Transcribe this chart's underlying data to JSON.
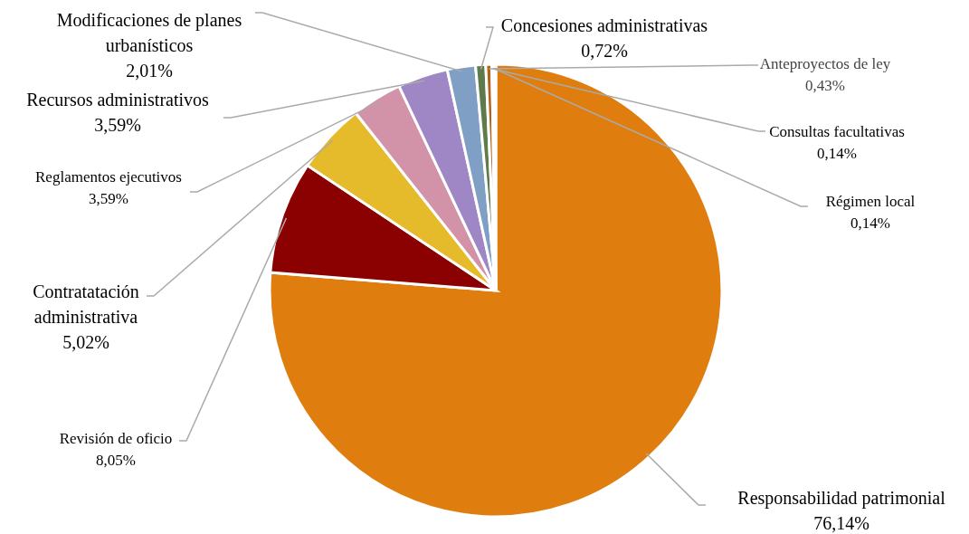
{
  "chart_data": {
    "type": "pie",
    "categories": [
      "Responsabilidad patrimonial",
      "Revisión de oficio",
      "Contratatación administrativa",
      "Reglamentos ejecutivos",
      "Recursos administrativos",
      "Modificaciones de planes urbanísticos",
      "Concesiones administrativas",
      "Anteproyectos de ley",
      "Consultas facultativas",
      "Régimen local"
    ],
    "values": [
      76.14,
      8.05,
      5.02,
      3.59,
      3.59,
      2.01,
      0.72,
      0.43,
      0.14,
      0.14
    ],
    "value_labels": [
      "76,14%",
      "8,05%",
      "5,02%",
      "3,59%",
      "3,59%",
      "2,01%",
      "0,72%",
      "0,43%",
      "0,14%",
      "0,14%"
    ],
    "colors": [
      "#df7e0f",
      "#8b0000",
      "#e5bb2b",
      "#d292a7",
      "#9f86c4",
      "#7f9fc5",
      "#5f7a4b",
      "#b4621a",
      "#c9a0dc",
      "#4f6f9f"
    ],
    "legend": false
  }
}
